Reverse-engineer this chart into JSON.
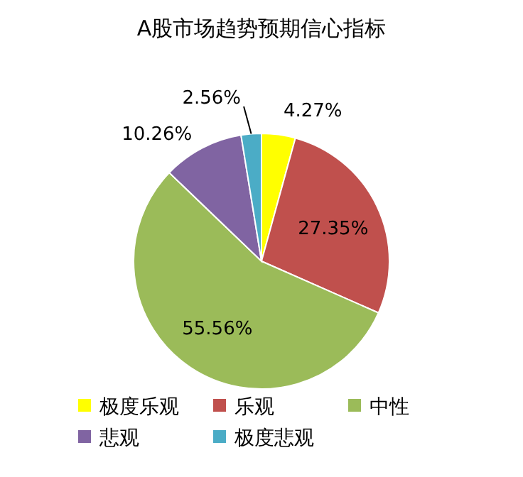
{
  "chart_data": {
    "type": "pie",
    "title": "A股市场趋势预期信心指标",
    "categories": [
      "极度乐观",
      "乐观",
      "中性",
      "悲观",
      "极度悲观"
    ],
    "values": [
      4.27,
      27.35,
      55.56,
      10.26,
      2.56
    ],
    "colors": [
      "#ffff00",
      "#c0504d",
      "#9bbb59",
      "#8064a2",
      "#4bacc6"
    ],
    "value_labels": [
      "4.27%",
      "27.35%",
      "55.56%",
      "10.26%",
      "2.56%"
    ],
    "legend": "bottom"
  }
}
